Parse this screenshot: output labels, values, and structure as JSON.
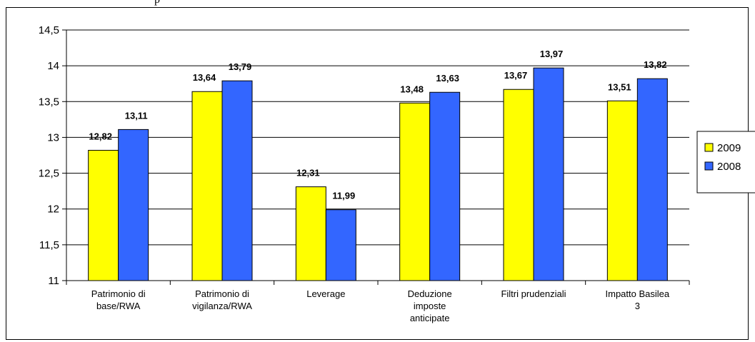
{
  "page_fragment": "p",
  "chart_data": {
    "type": "bar",
    "categories": [
      [
        "Patrimonio di",
        "base/RWA"
      ],
      [
        "Patrimonio di",
        "vigilanza/RWA"
      ],
      [
        "Leverage"
      ],
      [
        "Deduzione",
        "imposte",
        "anticipate"
      ],
      [
        "Filtri prudenziali"
      ],
      [
        "Impatto Basilea",
        "3"
      ]
    ],
    "series": [
      {
        "name": "2009",
        "color": "#ffff00",
        "values": [
          12.82,
          13.64,
          12.31,
          13.48,
          13.67,
          13.51
        ],
        "labels": [
          "12,82",
          "13,64",
          "12,31",
          "13,48",
          "13,67",
          "13,51"
        ]
      },
      {
        "name": "2008",
        "color": "#3366ff",
        "values": [
          13.11,
          13.79,
          11.99,
          13.63,
          13.97,
          13.82
        ],
        "labels": [
          "13,11",
          "13,79",
          "11,99",
          "13,63",
          "13,97",
          "13,82"
        ]
      }
    ],
    "ylim": [
      11,
      14.5
    ],
    "yticks": [
      11,
      11.5,
      12,
      12.5,
      13,
      13.5,
      14,
      14.5
    ],
    "ytick_labels": [
      "11",
      "11,5",
      "12",
      "12,5",
      "13",
      "13,5",
      "14",
      "14,5"
    ],
    "grid": true,
    "legend_position": "right"
  }
}
